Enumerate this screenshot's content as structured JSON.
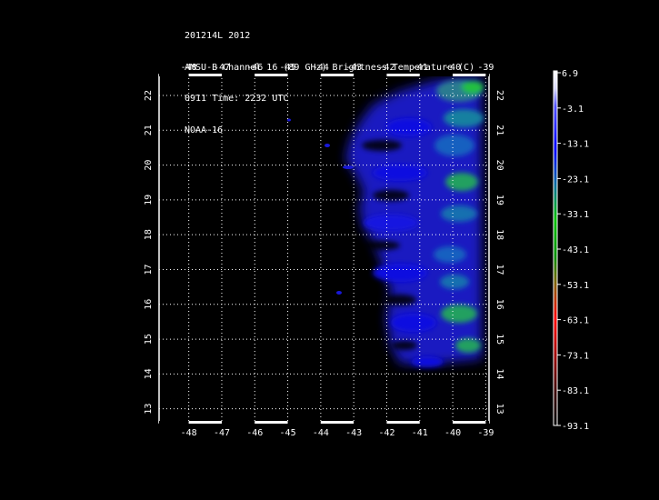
{
  "header": {
    "line1": "201214L 2012",
    "line2": "AMSU-B Channel 16 (89 GHz) Brightness Temperature (C)",
    "line3": "0911 Time: 2232 UTC",
    "line4": "NOAA-16"
  },
  "map": {
    "lon_labels": [
      "-48",
      "-47",
      "-46",
      "-45",
      "-44",
      "-43",
      "-42",
      "-41",
      "-40",
      "-39"
    ],
    "lat_labels": [
      "22",
      "21",
      "20",
      "19",
      "18",
      "17",
      "16",
      "15",
      "14",
      "13"
    ],
    "lon_range": [
      -48.9,
      -38.9
    ],
    "lat_range": [
      12.6,
      22.6
    ]
  },
  "colorbar": {
    "labels": [
      "6.9",
      "-3.1",
      "-13.1",
      "-23.1",
      "-33.1",
      "-43.1",
      "-53.1",
      "-63.1",
      "-73.1",
      "-83.1",
      "-93.1"
    ],
    "colors": [
      "#ffffff",
      "#0000ff",
      "#00a000",
      "#ff0000",
      "#000000"
    ]
  }
}
